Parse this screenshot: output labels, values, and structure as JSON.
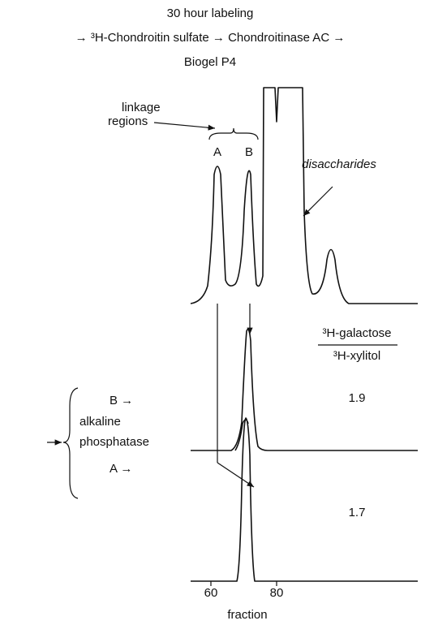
{
  "header": {
    "title": "30 hour labeling",
    "line2": "→ ³H-Chondroitin sulfate → Chondroitinase AC →",
    "line3": "Biogel P4"
  },
  "top": {
    "linkage": "linkage",
    "regions": "regions",
    "peak_a": "A",
    "peak_b": "B",
    "disaccharides": "disaccharides"
  },
  "ratio": {
    "numerator": "³H-galactose",
    "denominator": "³H-xylitol",
    "b_value": "1.9",
    "a_value": "1.7"
  },
  "left": {
    "b_label": "B →",
    "line1": "alkaline",
    "line2": "phosphatase",
    "a_label": "A →"
  },
  "axis": {
    "ticks": [
      "60",
      "80"
    ],
    "label": "fraction"
  }
}
